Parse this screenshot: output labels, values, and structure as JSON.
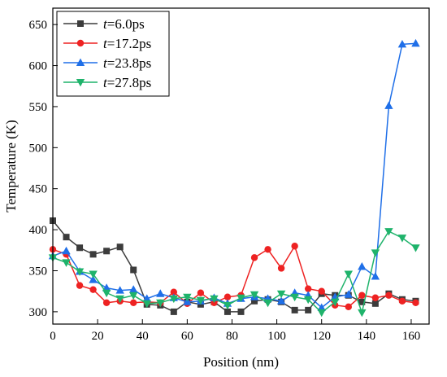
{
  "chart_data": {
    "type": "line",
    "xlabel": "Position (nm)",
    "ylabel": "Temperature (K)",
    "xlim": [
      0,
      168
    ],
    "ylim": [
      285,
      670
    ],
    "xticks": [
      0,
      20,
      40,
      60,
      80,
      100,
      120,
      140,
      160
    ],
    "yticks": [
      300,
      350,
      400,
      450,
      500,
      550,
      600,
      650
    ],
    "grid": false,
    "legend_position": "top-left",
    "legend_prefix": "t",
    "series": [
      {
        "name": "=6.0ps",
        "color": "#3c3c3c",
        "marker": "square",
        "x": [
          0,
          6,
          12,
          18,
          24,
          30,
          36,
          42,
          48,
          54,
          60,
          66,
          72,
          78,
          84,
          90,
          96,
          102,
          108,
          114,
          120,
          126,
          132,
          138,
          144,
          150,
          156,
          162
        ],
        "y": [
          411,
          391,
          378,
          370,
          374,
          379,
          351,
          309,
          308,
          300,
          312,
          309,
          312,
          300,
          300,
          313,
          315,
          312,
          302,
          302,
          322,
          320,
          320,
          312,
          310,
          322,
          315,
          313
        ]
      },
      {
        "name": "=17.2ps",
        "color": "#ee2222",
        "marker": "circle",
        "x": [
          0,
          6,
          12,
          18,
          24,
          30,
          36,
          42,
          48,
          54,
          60,
          66,
          72,
          78,
          84,
          90,
          96,
          102,
          108,
          114,
          120,
          126,
          132,
          138,
          144,
          150,
          156,
          162
        ],
        "y": [
          376,
          370,
          332,
          327,
          311,
          313,
          311,
          312,
          311,
          324,
          310,
          323,
          311,
          318,
          320,
          366,
          376,
          353,
          380,
          328,
          325,
          308,
          306,
          320,
          317,
          320,
          313,
          311
        ]
      },
      {
        "name": "=23.8ps",
        "color": "#1f6fe8",
        "marker": "triangle-up",
        "x": [
          0,
          6,
          12,
          18,
          24,
          30,
          36,
          42,
          48,
          54,
          60,
          66,
          72,
          78,
          84,
          90,
          96,
          102,
          108,
          114,
          120,
          126,
          132,
          138,
          144,
          150,
          156,
          162
        ],
        "y": [
          368,
          374,
          349,
          339,
          329,
          326,
          327,
          316,
          322,
          317,
          312,
          313,
          317,
          310,
          316,
          318,
          316,
          313,
          323,
          320,
          305,
          318,
          321,
          355,
          343,
          551,
          626,
          627
        ]
      },
      {
        "name": "=27.8ps",
        "color": "#1fb36b",
        "marker": "triangle-down",
        "x": [
          0,
          6,
          12,
          18,
          24,
          30,
          36,
          42,
          48,
          54,
          60,
          66,
          72,
          78,
          84,
          90,
          96,
          102,
          108,
          114,
          120,
          126,
          132,
          138,
          144,
          150,
          156,
          162
        ],
        "y": [
          366,
          360,
          349,
          346,
          323,
          316,
          320,
          310,
          311,
          316,
          318,
          314,
          316,
          308,
          317,
          321,
          311,
          322,
          318,
          315,
          299,
          312,
          346,
          299,
          372,
          398,
          390,
          378
        ]
      }
    ]
  }
}
